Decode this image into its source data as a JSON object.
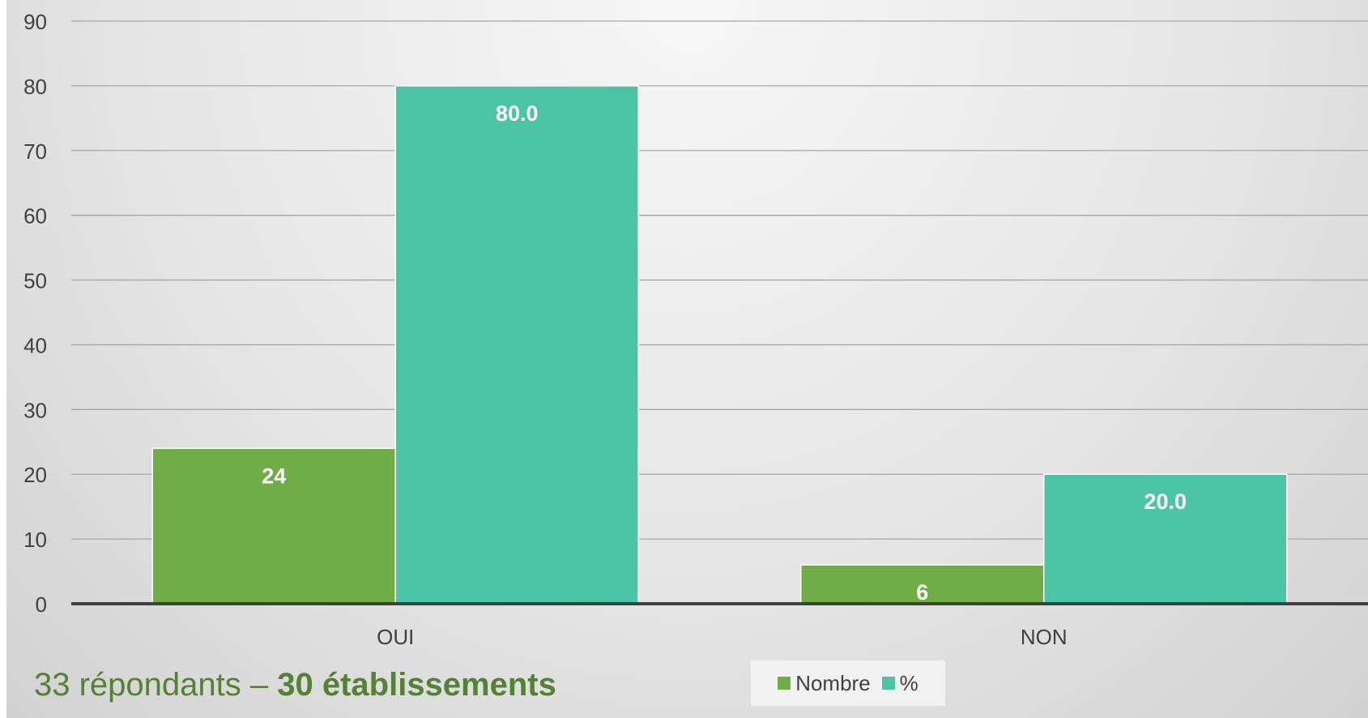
{
  "chart_data": {
    "type": "bar",
    "categories": [
      "OUI",
      "NON"
    ],
    "series": [
      {
        "name": "Nombre",
        "values": [
          24,
          6
        ],
        "labels": [
          "24",
          "6"
        ],
        "color": "#70AD47"
      },
      {
        "name": "%",
        "values": [
          80.0,
          20.0
        ],
        "labels": [
          "80.0",
          "20.0"
        ],
        "color": "#4DC4A5"
      }
    ],
    "title": "",
    "xlabel": "",
    "ylabel": "",
    "ylim": [
      0,
      90
    ],
    "yticks": [
      0,
      10,
      20,
      30,
      40,
      50,
      60,
      70,
      80,
      90
    ],
    "grid": true,
    "legend_position": "bottom"
  },
  "footnote": {
    "normal": "33 répondants – ",
    "bold": "30 établissements"
  }
}
